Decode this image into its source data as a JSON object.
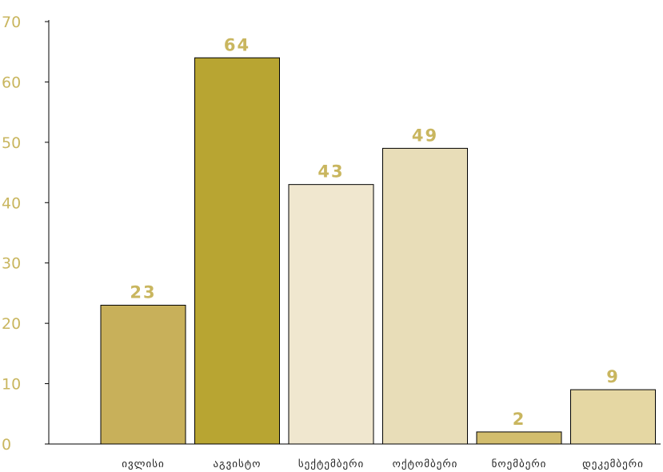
{
  "chart_data": {
    "type": "bar",
    "categories": [
      "ივლისი",
      "აგვისტო",
      "სექტემბერი",
      "ოქტომბერი",
      "ნოემბერი",
      "დეკემბერი"
    ],
    "values": [
      23,
      64,
      43,
      49,
      2,
      9
    ],
    "data_labels": [
      "23",
      "64",
      "43",
      "49",
      "2",
      "9"
    ],
    "yticks": [
      0,
      10,
      20,
      30,
      40,
      50,
      60,
      70
    ],
    "ylim": [
      0,
      70
    ],
    "grid": false,
    "colors": [
      "#c8b05a",
      "#b8a532",
      "#f0e7cf",
      "#e8ddb8",
      "#d2bd6e",
      "#e5d7a3"
    ],
    "bar_stroke": "#000000",
    "label_color": "#c9b65f"
  }
}
